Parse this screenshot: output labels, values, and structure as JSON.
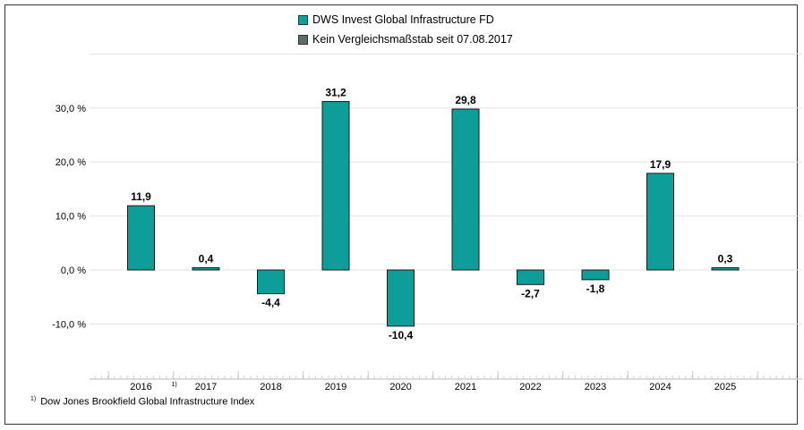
{
  "legend": [
    {
      "name": "DWS Invest Global Infrastructure FD",
      "color": "#0e9e9a"
    },
    {
      "name": "Kein Vergleichsmaßstab seit 07.08.2017",
      "color": "#5f6b6d"
    }
  ],
  "footnote": {
    "marker": "1)",
    "text": "Dow Jones Brookfield Global Infrastructure Index"
  },
  "chart_data": {
    "type": "bar",
    "categories": [
      "2016",
      "2017",
      "2018",
      "2019",
      "2020",
      "2021",
      "2022",
      "2023",
      "2024",
      "2025"
    ],
    "category_markers": {
      "2016": "1)"
    },
    "series": [
      {
        "name": "DWS Invest Global Infrastructure FD",
        "color": "#0e9e9a",
        "values": [
          11.9,
          0.4,
          -4.4,
          31.2,
          -10.4,
          29.8,
          -2.7,
          -1.8,
          17.9,
          0.3
        ],
        "value_labels": [
          "11,9",
          "0,4",
          "-4,4",
          "31,2",
          "-10,4",
          "29,8",
          "-2,7",
          "-1,8",
          "17,9",
          "0,3"
        ]
      }
    ],
    "yticks": [
      30,
      20,
      10,
      0,
      -10
    ],
    "ytick_labels": [
      "30,0 %",
      "20,0 %",
      "10,0 %",
      "0,0 %",
      "-10,0 %"
    ],
    "ylim": [
      -20,
      40
    ],
    "grid": true,
    "legend_position": "top"
  }
}
